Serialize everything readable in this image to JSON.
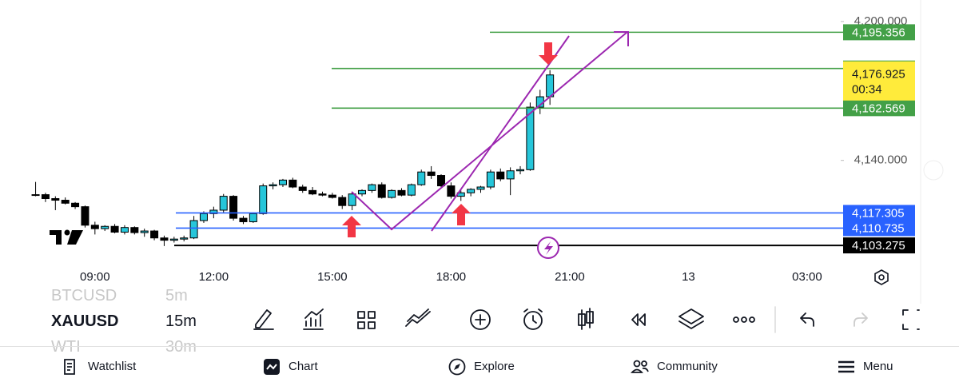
{
  "chart_data": {
    "type": "candlestick",
    "x": [
      7.5,
      7.75,
      8,
      8.25,
      8.5,
      8.75,
      9,
      9.25,
      9.5,
      9.75,
      10,
      10.25,
      10.5,
      10.75,
      11,
      11.25,
      11.5,
      11.75,
      12,
      12.25,
      12.5,
      12.75,
      13,
      13.25,
      13.5,
      13.75,
      14,
      14.25,
      14.5,
      14.75,
      15,
      15.25,
      15.5,
      15.75,
      16,
      16.25,
      16.5,
      16.75,
      17,
      17.25,
      17.5,
      17.75,
      18,
      18.25,
      18.5,
      18.75,
      19,
      19.25,
      19.5,
      19.75,
      20,
      20.25,
      20.5
    ],
    "open": [
      4125.0,
      4125.2,
      4123.5,
      4122.8,
      4121.5,
      4120.0,
      4112.0,
      4110.5,
      4111.5,
      4109.0,
      4111.0,
      4108.8,
      4109.5,
      4106.5,
      4105.5,
      4106.0,
      4106.5,
      4114.0,
      4117.0,
      4118.5,
      4124.5,
      4115.0,
      4113.5,
      4117.0,
      4129.0,
      4129.5,
      4131.5,
      4128.5,
      4127.0,
      4125.5,
      4125.0,
      4124.0,
      4120.5,
      4125.5,
      4127.0,
      4129.5,
      4124.0,
      4127.0,
      4125.0,
      4129.5,
      4135.0,
      4133.5,
      4129.0,
      4124.5,
      4126.0,
      4127.5,
      4128.5,
      4135.0,
      4132.0,
      4135.5,
      4136.0,
      4163.0,
      4167.5
    ],
    "high": [
      4130.7,
      4126.0,
      4124.5,
      4124.0,
      4122.0,
      4120.5,
      4113.5,
      4112.0,
      4112.5,
      4112.0,
      4111.5,
      4110.5,
      4110.0,
      4107.5,
      4107.0,
      4107.5,
      4116.0,
      4118.0,
      4120.0,
      4125.5,
      4125.0,
      4116.0,
      4117.5,
      4130.0,
      4130.5,
      4132.0,
      4132.5,
      4129.5,
      4128.5,
      4126.5,
      4126.0,
      4125.0,
      4126.0,
      4127.5,
      4130.0,
      4130.5,
      4127.5,
      4128.0,
      4130.0,
      4136.0,
      4137.5,
      4134.0,
      4130.5,
      4127.0,
      4128.0,
      4129.0,
      4136.0,
      4136.5,
      4137.0,
      4137.5,
      4165.0,
      4170.5,
      4179.0
    ],
    "low": [
      4124.5,
      4122.0,
      4118.5,
      4121.0,
      4119.0,
      4111.0,
      4108.0,
      4109.5,
      4108.5,
      4108.0,
      4108.0,
      4107.0,
      4105.5,
      4103.0,
      4104.5,
      4105.0,
      4106.0,
      4113.0,
      4115.0,
      4117.5,
      4114.0,
      4112.5,
      4113.0,
      4116.5,
      4127.5,
      4128.5,
      4128.0,
      4126.0,
      4125.0,
      4124.5,
      4123.5,
      4119.0,
      4118.5,
      4124.5,
      4126.0,
      4123.5,
      4123.5,
      4124.5,
      4124.5,
      4129.0,
      4132.0,
      4128.0,
      4123.5,
      4122.5,
      4124.5,
      4126.0,
      4127.5,
      4131.0,
      4125.0,
      4134.0,
      4135.5,
      4160.0,
      4164.0
    ],
    "close": [
      4125.2,
      4123.5,
      4122.8,
      4121.5,
      4120.0,
      4112.0,
      4110.5,
      4111.5,
      4109.0,
      4111.0,
      4108.8,
      4109.5,
      4106.5,
      4105.5,
      4106.0,
      4106.5,
      4114.0,
      4117.0,
      4118.5,
      4124.5,
      4115.0,
      4113.5,
      4117.0,
      4129.0,
      4129.5,
      4131.5,
      4128.5,
      4127.0,
      4125.5,
      4125.0,
      4124.0,
      4120.5,
      4125.5,
      4127.0,
      4129.5,
      4124.0,
      4127.0,
      4125.0,
      4129.5,
      4135.0,
      4133.5,
      4129.0,
      4124.5,
      4126.0,
      4127.5,
      4128.5,
      4135.0,
      4132.0,
      4135.5,
      4136.0,
      4163.0,
      4167.5,
      4176.925
    ],
    "up_color": "#26c6da",
    "down_color": "#000000",
    "xlim": [
      6.6,
      27.91
    ],
    "ylim": [
      4085,
      4209.3
    ],
    "xticks": [
      {
        "value": 9,
        "label": "09:00"
      },
      {
        "value": 12,
        "label": "12:00"
      },
      {
        "value": 15,
        "label": "15:00"
      },
      {
        "value": 18,
        "label": "18:00"
      },
      {
        "value": 21,
        "label": "21:00"
      },
      {
        "value": 24,
        "label": "13"
      },
      {
        "value": 27,
        "label": "03:00"
      }
    ],
    "yticks": [
      {
        "value": 4200,
        "label": "4,200.000"
      },
      {
        "value": 4140,
        "label": "4,140.000"
      }
    ],
    "price_lines": [
      {
        "value": 4195.356,
        "label": "4,195.356",
        "color": "#43a047"
      },
      {
        "value": 4179.7,
        "color": "#43a047"
      },
      {
        "value": 4162.569,
        "label": "4,162.569",
        "color": "#43a047"
      },
      {
        "value": 4117.305,
        "label": "4,117.305",
        "color": "#2962ff"
      },
      {
        "value": 4110.735,
        "label": "4,110.735",
        "color": "#2962ff"
      },
      {
        "value": 4103.275,
        "label": "4,103.275",
        "color": "#000000"
      }
    ],
    "current_price": {
      "value": 4176.925,
      "label": "4,176.925",
      "countdown": "00:34",
      "color": "#ffeb3b"
    }
  },
  "symbol_list": [
    {
      "symbol": "BTCUSD",
      "interval": "5m"
    },
    {
      "symbol": "XAUUSD",
      "interval": "15m"
    },
    {
      "symbol": "WTI",
      "interval": "30m"
    }
  ],
  "bottom_nav": [
    "Watchlist",
    "Chart",
    "Explore",
    "Community",
    "Menu"
  ]
}
